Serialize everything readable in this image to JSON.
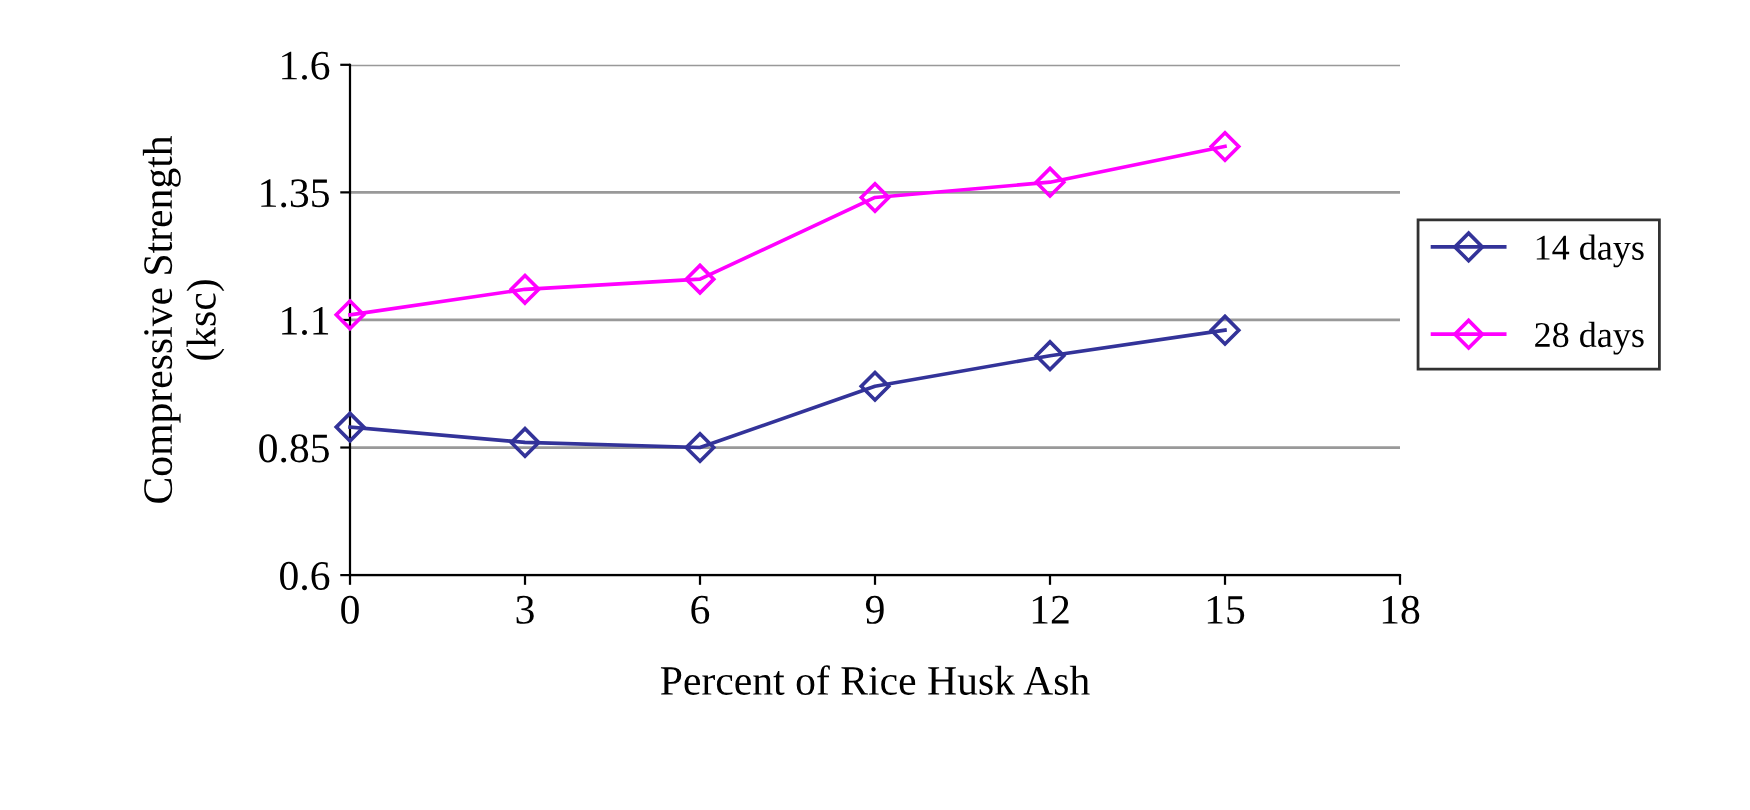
{
  "chart_data": {
    "type": "line",
    "xlabel": "Percent of Rice Husk Ash",
    "ylabel": "Compressive Strength\n(ksc)",
    "x": [
      0,
      3,
      6,
      9,
      12,
      15
    ],
    "series": [
      {
        "name": "14 days",
        "color": "#333399",
        "values": [
          0.89,
          0.86,
          0.85,
          0.97,
          1.03,
          1.08
        ]
      },
      {
        "name": "28 days",
        "color": "#ff00ff",
        "values": [
          1.11,
          1.16,
          1.18,
          1.34,
          1.37,
          1.44
        ]
      }
    ],
    "xlim": [
      0,
      18
    ],
    "xticks": [
      0,
      3,
      6,
      9,
      12,
      15,
      18
    ],
    "ylim": [
      0.6,
      1.6
    ],
    "yticks": [
      0.6,
      0.85,
      1.1,
      1.35,
      1.6
    ],
    "grid": "y",
    "legend": "right",
    "marker": "diamond",
    "line_style": "solid"
  }
}
